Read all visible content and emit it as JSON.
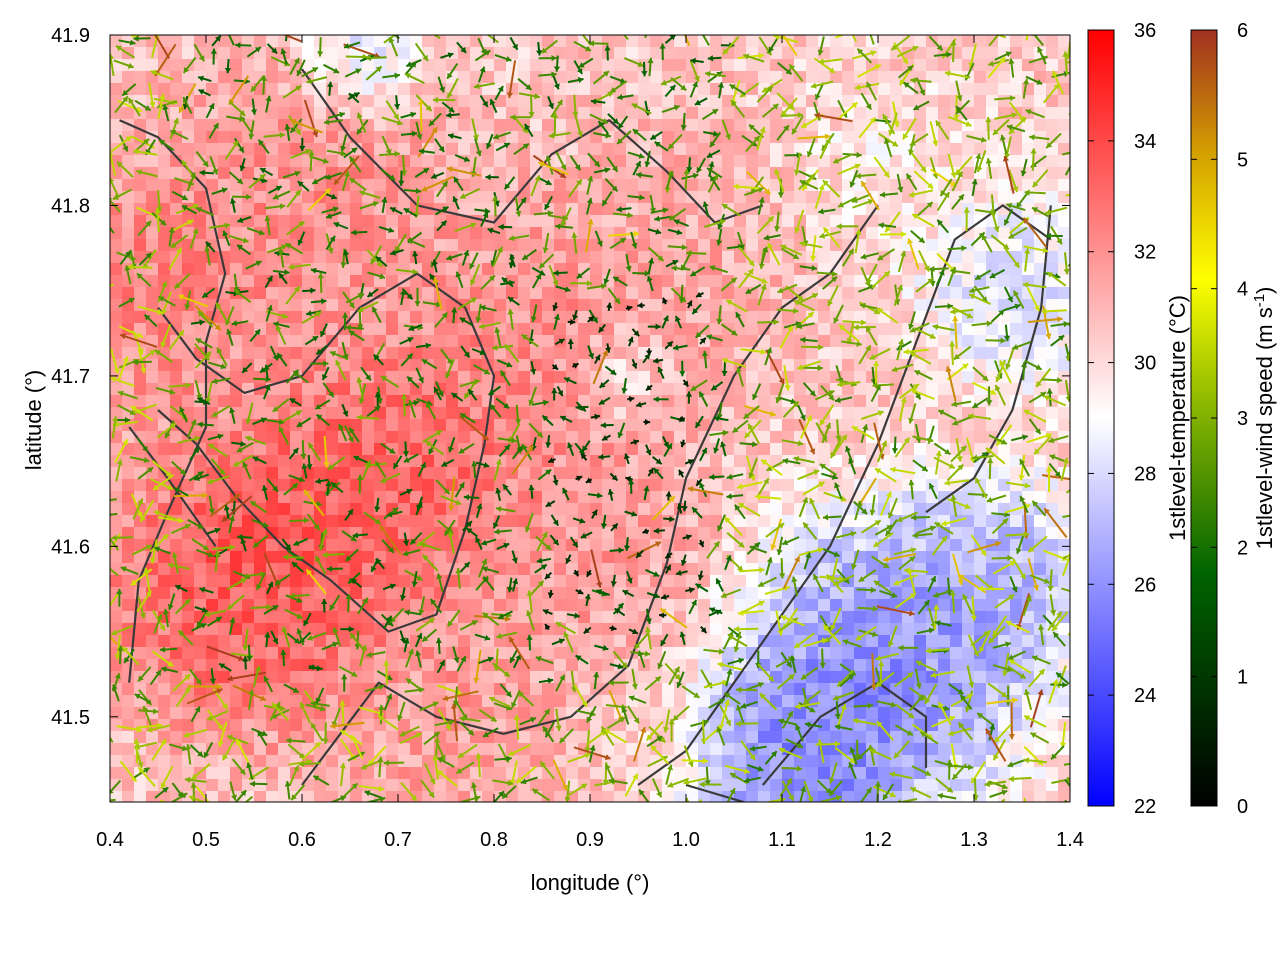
{
  "chart_data": {
    "type": "heatmap",
    "overlay": "wind vectors and contour outlines",
    "xlabel": "longitude (°)",
    "ylabel": "latitude (°)",
    "xlim": [
      0.4,
      1.4
    ],
    "ylim": [
      41.45,
      41.9
    ],
    "x_ticks": [
      0.4,
      0.5,
      0.6,
      0.7,
      0.8,
      0.9,
      1.0,
      1.1,
      1.2,
      1.3,
      1.4
    ],
    "x_tick_labels": [
      "0.4",
      "0.5",
      "0.6",
      "0.7",
      "0.8",
      "0.9",
      "1.0",
      "1.1",
      "1.2",
      "1.3",
      "1.4"
    ],
    "y_ticks": [
      41.5,
      41.6,
      41.7,
      41.8,
      41.9
    ],
    "y_tick_labels": [
      "41.5",
      "41.6",
      "41.7",
      "41.8",
      "41.9"
    ],
    "colorbars": [
      {
        "label": "1stlevel-temperature (°C)",
        "range": [
          22,
          36
        ],
        "ticks": [
          22,
          24,
          26,
          28,
          30,
          32,
          34,
          36
        ],
        "tick_labels": [
          "22",
          "24",
          "26",
          "28",
          "30",
          "32",
          "34",
          "36"
        ],
        "colormap": [
          "#0000ff",
          "#ffffff",
          "#ff0000"
        ]
      },
      {
        "label_main": "1stlevel-wind speed (m s",
        "label_sup": "-1",
        "label_end": ")",
        "range": [
          0,
          6
        ],
        "ticks": [
          0,
          1,
          2,
          3,
          4,
          5,
          6
        ],
        "tick_labels": [
          "0",
          "1",
          "2",
          "3",
          "4",
          "5",
          "6"
        ],
        "colormap": [
          "#000000",
          "#006400",
          "#80b000",
          "#ffff00",
          "#d4a000",
          "#a03020"
        ]
      }
    ],
    "temperature_regions": [
      {
        "lon": 0.55,
        "lat": 41.58,
        "temp": 34.5,
        "radius": 0.12
      },
      {
        "lon": 0.7,
        "lat": 41.64,
        "temp": 34.0,
        "radius": 0.12
      },
      {
        "lon": 0.45,
        "lat": 41.75,
        "temp": 33.0,
        "radius": 0.1
      },
      {
        "lon": 0.6,
        "lat": 41.8,
        "temp": 32.5,
        "radius": 0.12
      },
      {
        "lon": 0.85,
        "lat": 41.72,
        "temp": 32.5,
        "radius": 0.12
      },
      {
        "lon": 0.9,
        "lat": 41.6,
        "temp": 32.0,
        "radius": 0.1
      },
      {
        "lon": 0.75,
        "lat": 41.5,
        "temp": 32.0,
        "radius": 0.1
      },
      {
        "lon": 1.0,
        "lat": 41.78,
        "temp": 31.5,
        "radius": 0.1
      },
      {
        "lon": 1.2,
        "lat": 41.53,
        "temp": 24.5,
        "radius": 0.12
      },
      {
        "lon": 1.12,
        "lat": 41.47,
        "temp": 24.5,
        "radius": 0.08
      },
      {
        "lon": 1.32,
        "lat": 41.58,
        "temp": 26.0,
        "radius": 0.08
      },
      {
        "lon": 1.35,
        "lat": 41.75,
        "temp": 27.5,
        "radius": 0.08
      },
      {
        "lon": 0.66,
        "lat": 41.89,
        "temp": 27.5,
        "radius": 0.05
      },
      {
        "lon": 0.93,
        "lat": 41.7,
        "temp": 28.5,
        "radius": 0.04
      },
      {
        "lon": 1.2,
        "lat": 41.82,
        "temp": 29.5,
        "radius": 0.08
      }
    ],
    "background_temperature": 30.5,
    "contours": [
      [
        [
          0.41,
          41.85
        ],
        [
          0.45,
          41.84
        ],
        [
          0.5,
          41.81
        ],
        [
          0.52,
          41.76
        ],
        [
          0.5,
          41.72
        ],
        [
          0.5,
          41.67
        ],
        [
          0.46,
          41.62
        ],
        [
          0.43,
          41.58
        ],
        [
          0.42,
          41.52
        ]
      ],
      [
        [
          0.45,
          41.68
        ],
        [
          0.49,
          41.66
        ],
        [
          0.53,
          41.63
        ],
        [
          0.58,
          41.6
        ],
        [
          0.63,
          41.58
        ],
        [
          0.69,
          41.55
        ],
        [
          0.74,
          41.56
        ],
        [
          0.77,
          41.61
        ],
        [
          0.79,
          41.66
        ],
        [
          0.8,
          41.7
        ],
        [
          0.77,
          41.74
        ],
        [
          0.72,
          41.76
        ],
        [
          0.66,
          41.74
        ],
        [
          0.6,
          41.7
        ],
        [
          0.54,
          41.69
        ],
        [
          0.49,
          41.71
        ],
        [
          0.45,
          41.74
        ]
      ],
      [
        [
          0.6,
          41.46
        ],
        [
          0.64,
          41.49
        ],
        [
          0.68,
          41.52
        ],
        [
          0.74,
          41.5
        ],
        [
          0.81,
          41.49
        ],
        [
          0.88,
          41.5
        ],
        [
          0.94,
          41.53
        ],
        [
          0.98,
          41.59
        ],
        [
          1.0,
          41.64
        ],
        [
          1.05,
          41.7
        ],
        [
          1.1,
          41.74
        ],
        [
          1.15,
          41.76
        ],
        [
          1.2,
          41.8
        ]
      ],
      [
        [
          0.6,
          41.88
        ],
        [
          0.65,
          41.84
        ],
        [
          0.72,
          41.8
        ],
        [
          0.8,
          41.79
        ],
        [
          0.86,
          41.83
        ],
        [
          0.92,
          41.85
        ],
        [
          0.98,
          41.82
        ],
        [
          1.03,
          41.79
        ],
        [
          1.08,
          41.8
        ]
      ],
      [
        [
          0.95,
          41.46
        ],
        [
          1.0,
          41.48
        ],
        [
          1.05,
          41.52
        ],
        [
          1.1,
          41.56
        ],
        [
          1.15,
          41.6
        ],
        [
          1.2,
          41.66
        ],
        [
          1.24,
          41.72
        ],
        [
          1.28,
          41.78
        ],
        [
          1.33,
          41.8
        ],
        [
          1.38,
          41.78
        ]
      ],
      [
        [
          1.08,
          41.46
        ],
        [
          1.14,
          41.5
        ],
        [
          1.2,
          41.52
        ],
        [
          1.25,
          41.5
        ],
        [
          1.25,
          41.47
        ]
      ],
      [
        [
          1.25,
          41.62
        ],
        [
          1.3,
          41.64
        ],
        [
          1.34,
          41.68
        ],
        [
          1.37,
          41.74
        ],
        [
          1.38,
          41.8
        ]
      ],
      [
        [
          0.42,
          41.67
        ],
        [
          0.46,
          41.64
        ],
        [
          0.51,
          41.6
        ]
      ],
      [
        [
          1.0,
          41.46
        ],
        [
          1.06,
          41.45
        ]
      ]
    ],
    "wind_field": "dense vector arrows colored by wind speed; mostly 1.5-3.5 m/s, stronger (4-6 m/s) over the coastal and eastern areas"
  }
}
